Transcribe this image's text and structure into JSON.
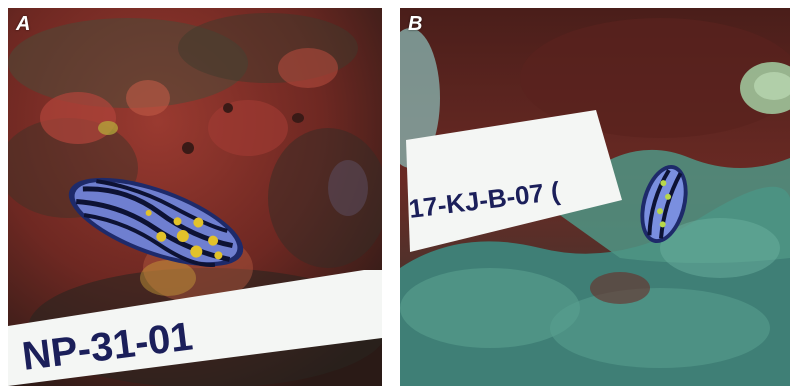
{
  "figure": {
    "panels": [
      {
        "letter": "A",
        "label_text": "NP-31-01",
        "colors": {
          "substrate": "#7a2e26",
          "nudibranch_body": "#6f7fd0",
          "spots": "#e2c22a",
          "label_ink": "#1b1f5a"
        }
      },
      {
        "letter": "B",
        "label_text": "17-KJ-B-07 (",
        "colors": {
          "substrate": "#3f7f76",
          "rock": "#6a2a24",
          "nudibranch_body": "#7a8fe0",
          "spots": "#b8d84a",
          "label_ink": "#1b1f5a"
        }
      }
    ]
  }
}
